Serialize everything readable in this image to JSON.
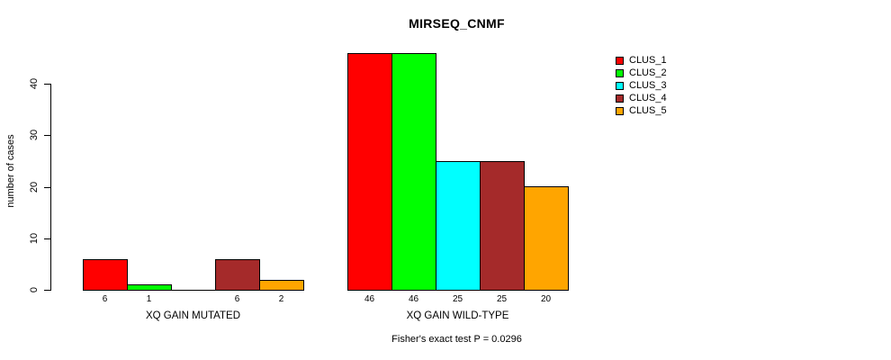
{
  "chart_data": {
    "type": "bar",
    "title": "MIRSEQ_CNMF",
    "ylabel": "number of cases",
    "xlabel": "",
    "subtitle": "Fisher's exact test P = 0.0296",
    "categories": [
      "XQ GAIN MUTATED",
      "XQ GAIN WILD-TYPE"
    ],
    "series": [
      {
        "name": "CLUS_1",
        "color": "#ff0000",
        "values": [
          6,
          46
        ]
      },
      {
        "name": "CLUS_2",
        "color": "#00ff00",
        "values": [
          1,
          46
        ]
      },
      {
        "name": "CLUS_3",
        "color": "#00ffff",
        "values": [
          0,
          25
        ]
      },
      {
        "name": "CLUS_4",
        "color": "#a52a2a",
        "values": [
          6,
          25
        ]
      },
      {
        "name": "CLUS_5",
        "color": "#ffa500",
        "values": [
          2,
          20
        ]
      }
    ],
    "bar_labels": [
      [
        "6",
        "1",
        "",
        "6",
        "2"
      ],
      [
        "46",
        "46",
        "25",
        "25",
        "20"
      ]
    ],
    "yticks": [
      0,
      10,
      20,
      30,
      40
    ],
    "ylim": [
      0,
      46
    ],
    "grid": false,
    "legend_position": "right",
    "axis_color": "#000000",
    "background_color": "#ffffff"
  }
}
